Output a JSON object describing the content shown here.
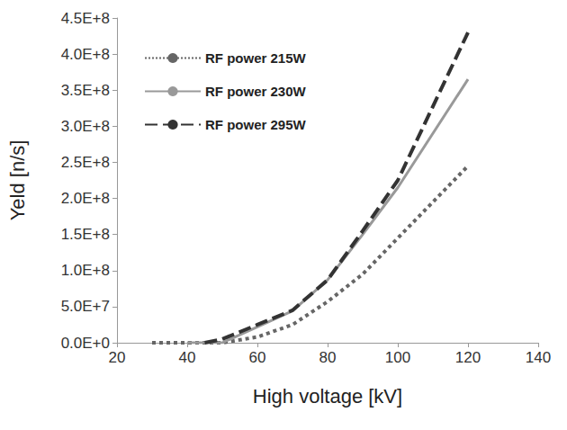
{
  "chart_data": {
    "type": "line",
    "x_label": "High voltage [kV]",
    "y_label": "Yeld [n/s]",
    "xlim": [
      20,
      140
    ],
    "xticks": [
      20,
      40,
      60,
      80,
      100,
      120,
      140
    ],
    "ylim": [
      0,
      450000000
    ],
    "yticks": [
      {
        "value": 0,
        "label": "0.0E+0"
      },
      {
        "value": 50000000,
        "label": "5.0E+7"
      },
      {
        "value": 100000000,
        "label": "1.0E+8"
      },
      {
        "value": 150000000,
        "label": "1.5E+8"
      },
      {
        "value": 200000000,
        "label": "2.0E+8"
      },
      {
        "value": 250000000,
        "label": "2.5E+8"
      },
      {
        "value": 300000000,
        "label": "3.0E+8"
      },
      {
        "value": 350000000,
        "label": "3.5E+8"
      },
      {
        "value": 400000000,
        "label": "4.0E+8"
      },
      {
        "value": 450000000,
        "label": "4.5E+8"
      }
    ],
    "grid": false,
    "legend": "upper left",
    "marker": "none",
    "series": [
      {
        "name": "RF power 215W",
        "color": "#666666",
        "line_style": "dotted",
        "x": [
          30,
          40,
          50,
          60,
          70,
          80,
          90,
          100,
          110,
          120
        ],
        "values": [
          0,
          0,
          0,
          8000000,
          25000000,
          57000000,
          95000000,
          145000000,
          195000000,
          245000000
        ]
      },
      {
        "name": "RF power 230W",
        "color": "#999999",
        "line_style": "solid",
        "x": [
          40,
          50,
          60,
          70,
          80,
          90,
          100,
          120
        ],
        "values": [
          0,
          0,
          22000000,
          44000000,
          87000000,
          150000000,
          215000000,
          365000000
        ]
      },
      {
        "name": "RF power 295W",
        "color": "#333333",
        "line_style": "dashed",
        "x": [
          45,
          50,
          60,
          70,
          80,
          90,
          100,
          120
        ],
        "values": [
          0,
          5000000,
          25000000,
          45000000,
          87000000,
          155000000,
          225000000,
          430000000
        ]
      }
    ]
  }
}
